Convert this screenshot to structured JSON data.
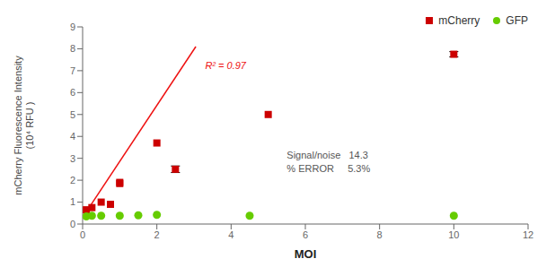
{
  "chart_data": {
    "type": "scatter",
    "xlabel": "MOI",
    "ylabel": "mCherry Fluorescence Intensity\n(10⁴ RFU )",
    "xlim": [
      0,
      12
    ],
    "xticks": [
      0,
      2,
      4,
      6,
      8,
      10,
      12
    ],
    "ylim": [
      0,
      9
    ],
    "yticks": [
      0,
      1,
      2,
      3,
      4,
      5,
      6,
      7,
      8,
      9
    ],
    "grid": false,
    "legend": "upper right",
    "series": [
      {
        "name": "mCherry",
        "type": "scatter",
        "marker": "square",
        "color": "#cc0000",
        "x": [
          0.1,
          0.25,
          0.5,
          0.75,
          1.0,
          1.0,
          2.0,
          2.5,
          5.0,
          10.0
        ],
        "values": [
          0.65,
          0.75,
          1.0,
          0.9,
          1.85,
          1.9,
          3.7,
          2.5,
          5.0,
          7.75
        ],
        "error": [
          0.0,
          0.0,
          0.0,
          0.0,
          0.0,
          0.0,
          0.0,
          0.15,
          0.0,
          0.12
        ]
      },
      {
        "name": "GFP",
        "type": "scatter",
        "marker": "circle",
        "color": "#66cc00",
        "x": [
          0.1,
          0.25,
          0.5,
          1.0,
          1.5,
          2.0,
          4.5,
          10.0
        ],
        "values": [
          0.35,
          0.38,
          0.38,
          0.38,
          0.4,
          0.42,
          0.38,
          0.38
        ]
      }
    ],
    "trendline": {
      "type": "line",
      "color": "#ee1111",
      "x": [
        0.0,
        3.05
      ],
      "values": [
        0.3,
        8.1
      ]
    },
    "annotations": [
      {
        "text": "R² = 0.97",
        "color": "#ee1111"
      },
      {
        "text": "Signal/noise   14.3",
        "color": "#555555"
      },
      {
        "text": "% ERROR     5.3%",
        "color": "#555555"
      }
    ]
  }
}
